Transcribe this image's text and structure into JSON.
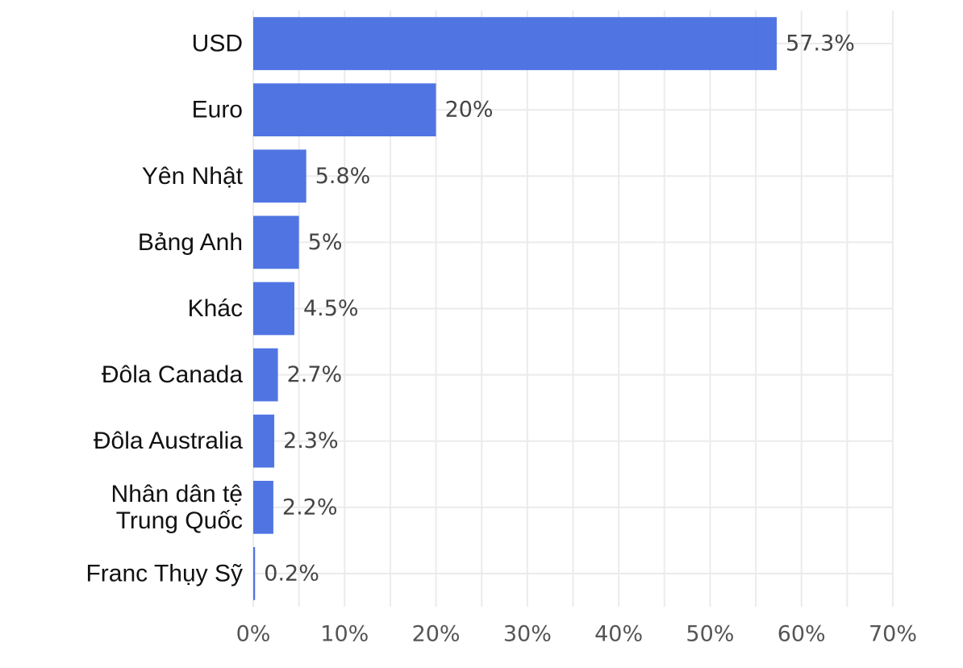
{
  "chart_data": {
    "type": "bar",
    "orientation": "horizontal",
    "title": "",
    "xlabel": "",
    "ylabel": "",
    "categories": [
      "USD",
      "Euro",
      "Yên Nhật",
      "Bảng Anh",
      "Khác",
      "Đôla Canada",
      "Đôla Australia",
      "Nhân dân tệ\nTrung Quốc",
      "Franc Thụy Sỹ"
    ],
    "values": [
      57.3,
      20,
      5.8,
      5,
      4.5,
      2.7,
      2.3,
      2.2,
      0.2
    ],
    "data_labels": [
      "57.3%",
      "20%",
      "5.8%",
      "5%",
      "4.5%",
      "2.7%",
      "2.3%",
      "2.2%",
      "0.2%"
    ],
    "xlim": [
      0,
      70
    ],
    "x_ticks": [
      0,
      10,
      20,
      30,
      40,
      50,
      60,
      70
    ],
    "x_tick_labels": [
      "0%",
      "10%",
      "20%",
      "30%",
      "40%",
      "50%",
      "60%",
      "70%"
    ],
    "grid": true,
    "legend": "none",
    "bar_color": "#4169E1"
  }
}
